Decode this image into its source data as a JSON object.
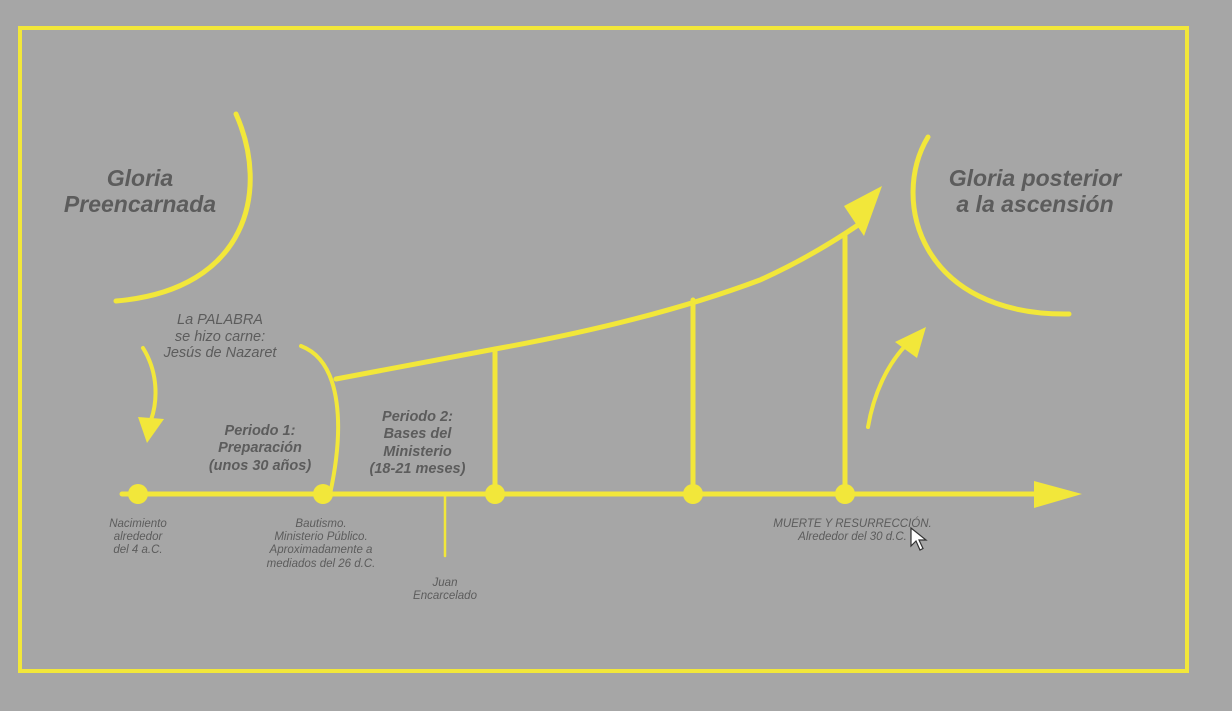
{
  "colors": {
    "background": "#a6a6a6",
    "accent": "#f2e73a",
    "text": "#5c5c5c"
  },
  "glory_pre": "Gloria\nPreencarnada",
  "glory_post": "Gloria posterior\na la ascensión",
  "word_flesh": "La PALABRA\nse hizo carne:\nJesús de Nazaret",
  "period1": "Periodo 1:\nPreparación\n(unos 30 años)",
  "period2": "Periodo 2:\nBases del\nMinisterio\n(18-21 meses)",
  "events": {
    "birth": "Nacimiento\nalrededor\ndel 4 a.C.",
    "baptism": "Bautismo.\nMinisterio Público.\nAproximadamente a\nmediados del 26 d.C.",
    "john": "Juan\nEncarcelado",
    "death": "MUERTE Y RESURRECCIÓN.\nAlrededor del 30 d.C."
  },
  "cursor_icon": "mouse-pointer-icon"
}
